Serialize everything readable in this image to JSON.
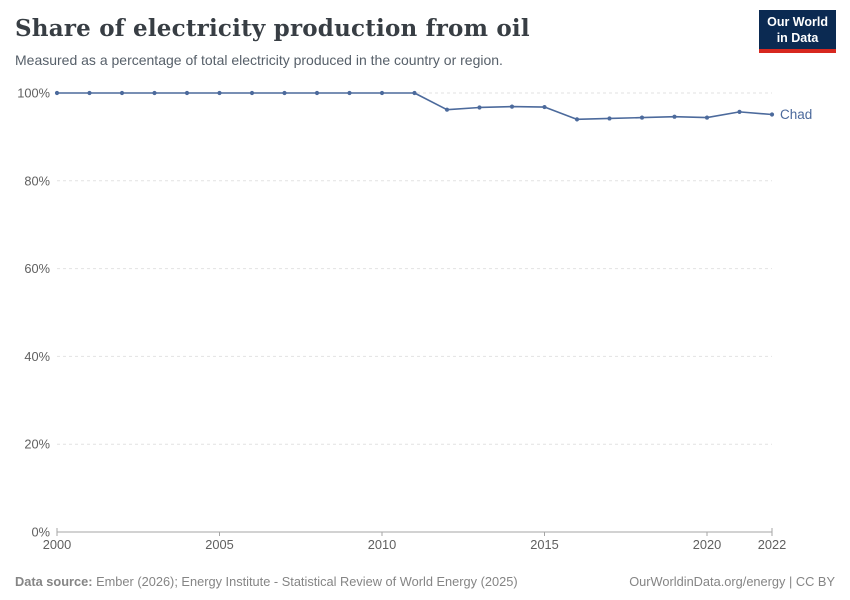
{
  "header": {
    "title": "Share of electricity production from oil",
    "subtitle": "Measured as a percentage of total electricity produced in the country or region.",
    "logo": {
      "line1": "Our World",
      "line2": "in Data"
    }
  },
  "chart_data": {
    "type": "line",
    "title": "Share of electricity production from oil",
    "xlabel": "",
    "ylabel": "",
    "x": [
      2000,
      2001,
      2002,
      2003,
      2004,
      2005,
      2006,
      2007,
      2008,
      2009,
      2010,
      2011,
      2012,
      2013,
      2014,
      2015,
      2016,
      2017,
      2018,
      2019,
      2020,
      2021,
      2022
    ],
    "series": [
      {
        "name": "Chad",
        "color": "#4c6a9c",
        "values": [
          100,
          100,
          100,
          100,
          100,
          100,
          100,
          100,
          100,
          100,
          100,
          100,
          96.2,
          96.7,
          96.9,
          96.8,
          94.0,
          94.2,
          94.4,
          94.6,
          94.4,
          95.7,
          95.1
        ]
      }
    ],
    "xlim": [
      2000,
      2022
    ],
    "ylim": [
      0,
      100
    ],
    "x_ticks": [
      2000,
      2005,
      2010,
      2015,
      2020,
      2022
    ],
    "y_ticks": [
      0,
      20,
      40,
      60,
      80,
      100
    ],
    "y_tick_suffix": "%",
    "grid": "horizontal-dashed",
    "legend_position": "end-of-line",
    "marker": "dot"
  },
  "footer": {
    "datasource_label": "Data source:",
    "datasource_text": " Ember (2026); Energy Institute - Statistical Review of World Energy (2025)",
    "credit": "OurWorldinData.org/energy | CC BY"
  },
  "colors": {
    "line": "#4c6a9c",
    "grid": "#e2e2e2",
    "axis": "#a5a5a5",
    "tick_text": "#606060",
    "logo_bg": "#0b2a52",
    "logo_underline": "#d7281f",
    "title_text": "#383e44",
    "subtitle_text": "#57606a",
    "footer_text": "#858585"
  }
}
